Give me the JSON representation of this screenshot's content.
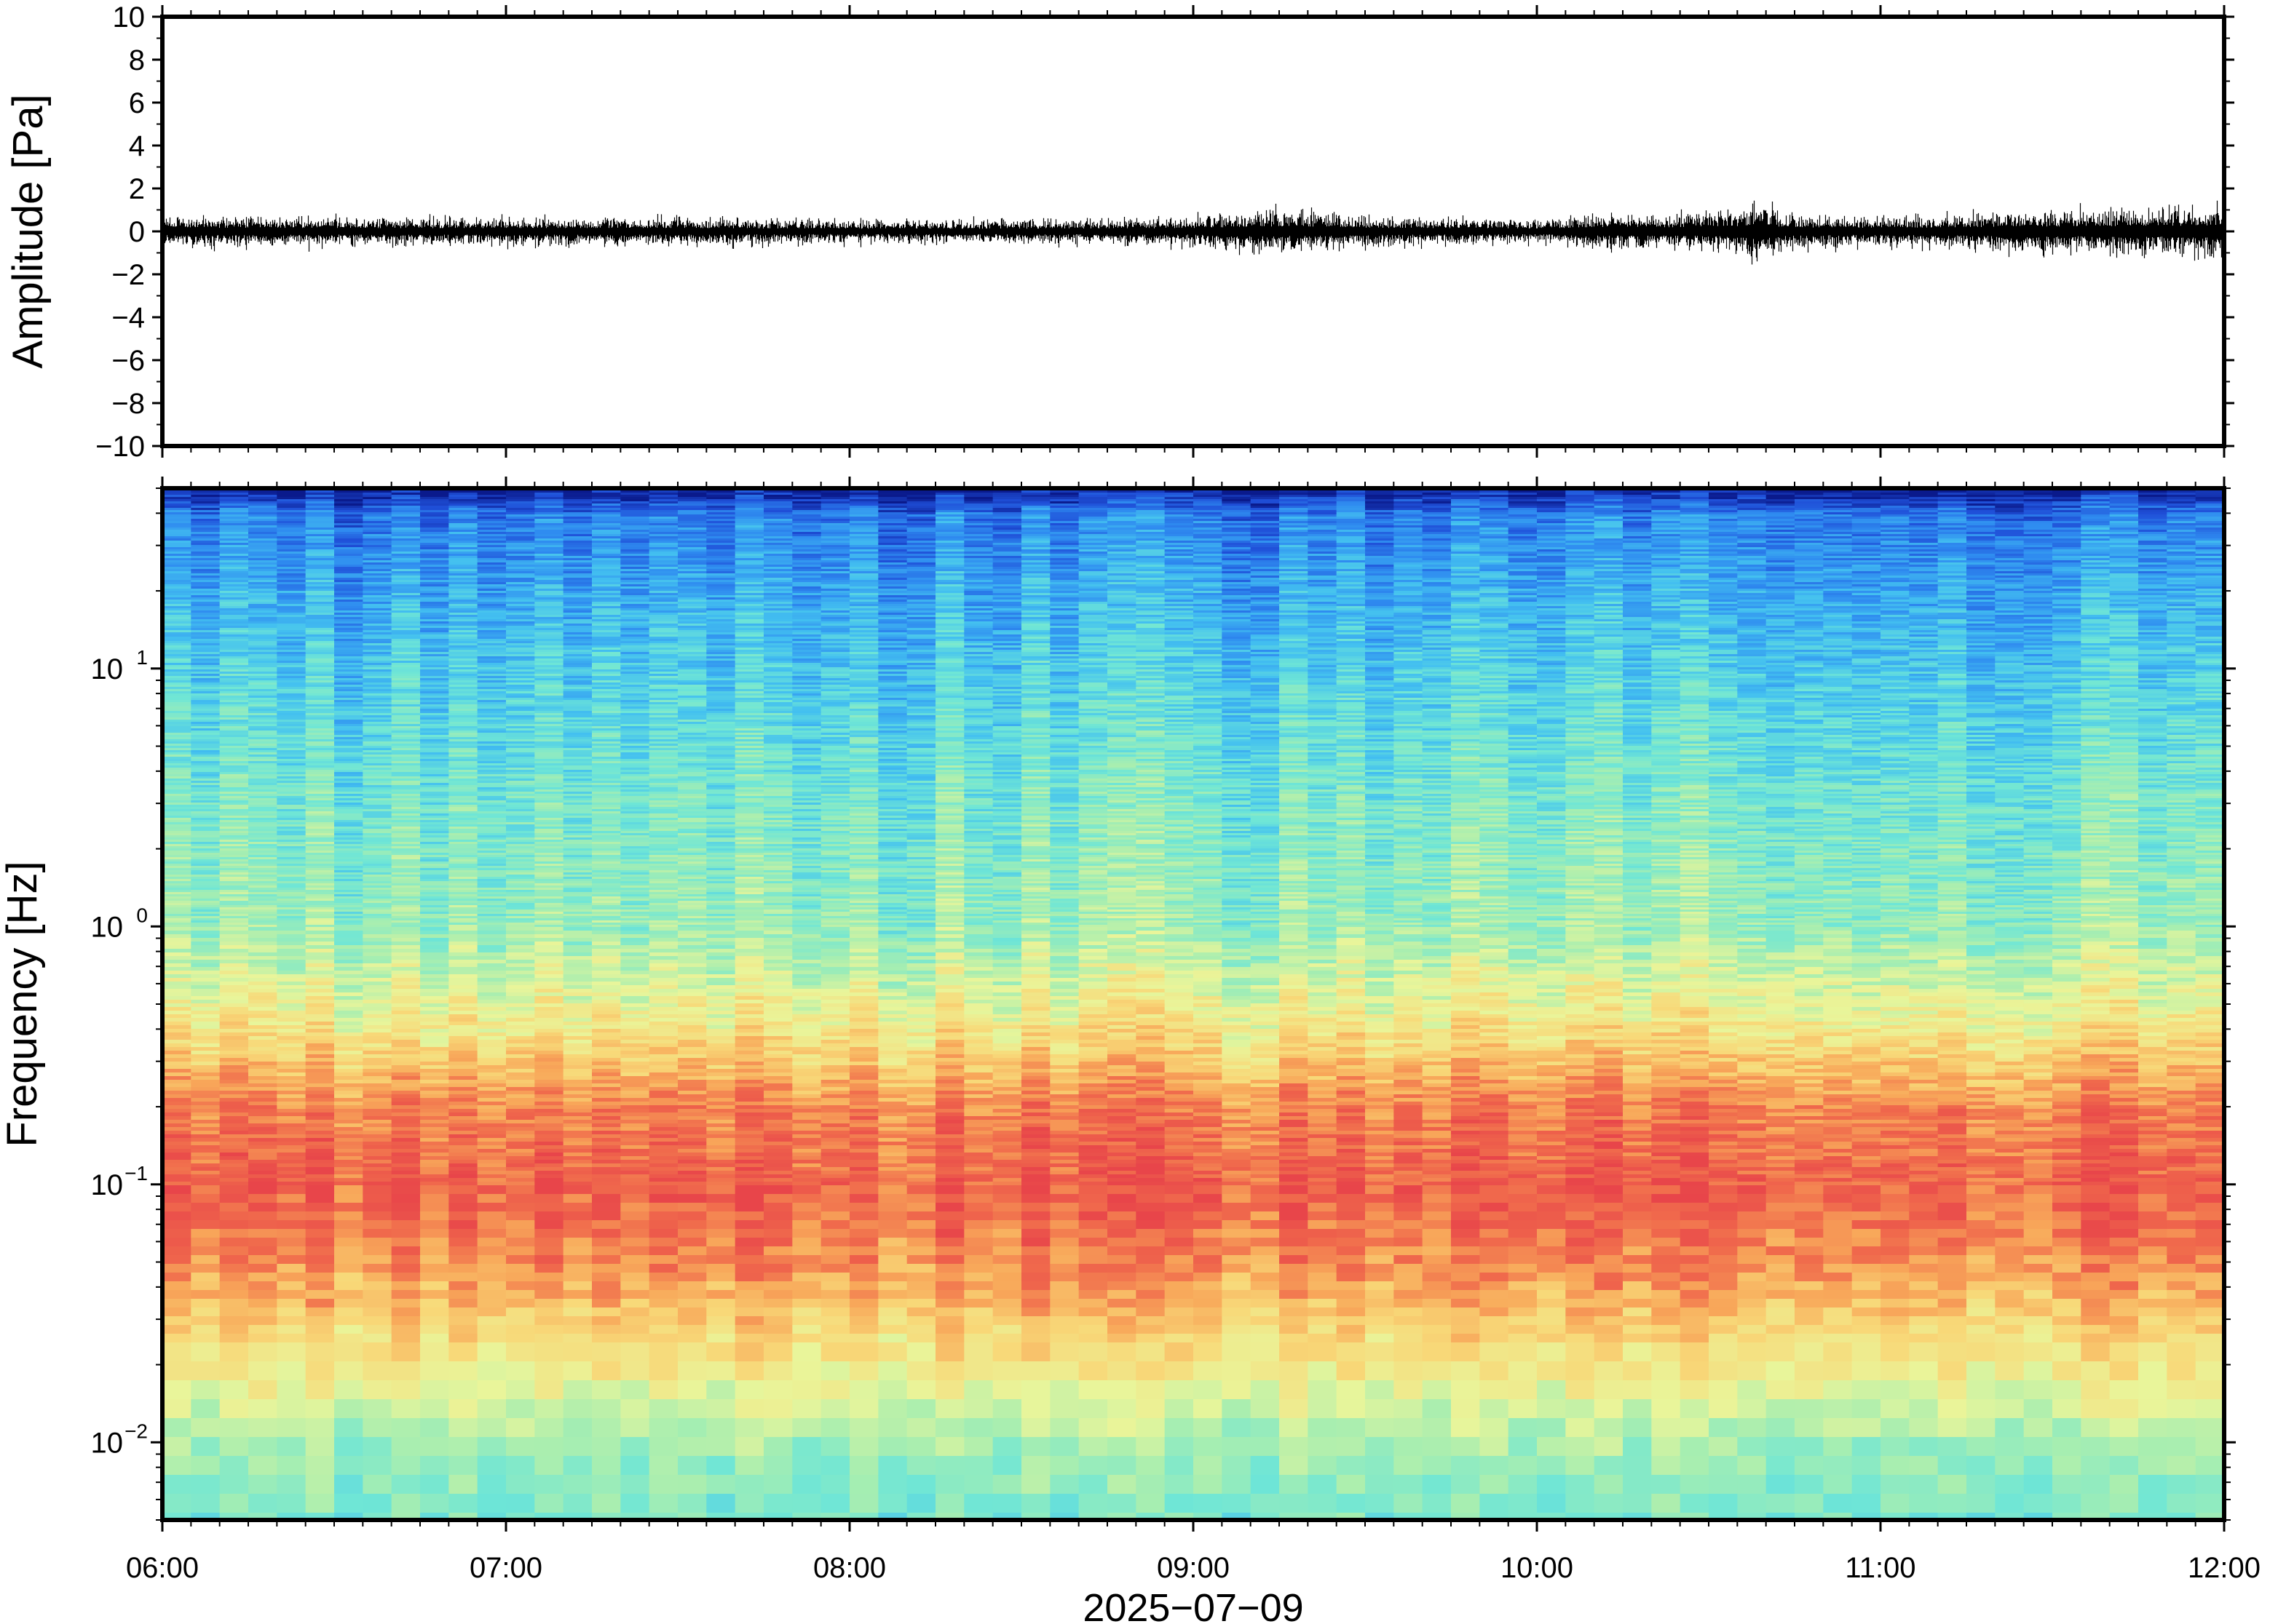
{
  "chart_data": [
    {
      "type": "line",
      "panel": "waveform",
      "ylabel": "Amplitude [Pa]",
      "ylim": [
        -10,
        10
      ],
      "yticks": [
        10,
        8,
        6,
        4,
        2,
        0,
        -2,
        -4,
        -6,
        -8,
        -10
      ],
      "ytick_labels": [
        "10",
        "8",
        "6",
        "4",
        "2",
        "0",
        "−2",
        "−4",
        "−6",
        "−8",
        "−10"
      ],
      "xlim": [
        "06:00",
        "12:00"
      ],
      "series": [
        {
          "color": "#000000",
          "envelope_hours": [
            6.0,
            6.5,
            7.0,
            7.5,
            8.0,
            8.5,
            9.0,
            9.2,
            9.4,
            9.6,
            9.8,
            10.0,
            10.2,
            10.4,
            10.6,
            10.65,
            10.7,
            11.0,
            11.5,
            11.9,
            12.0
          ],
          "envelope_amplitude_pa": [
            0.7,
            0.6,
            0.6,
            0.6,
            0.5,
            0.5,
            0.6,
            0.9,
            0.8,
            0.6,
            0.6,
            0.5,
            0.8,
            0.7,
            1.0,
            1.5,
            0.8,
            0.6,
            0.9,
            1.0,
            1.2
          ]
        }
      ]
    },
    {
      "type": "heatmap",
      "panel": "spectrogram",
      "ylabel": "Frequency [Hz]",
      "xlabel": "2025−07−09",
      "y_scale": "log",
      "ylim": [
        0.005,
        50
      ],
      "yticks": [
        0.01,
        0.1,
        1,
        10
      ],
      "ytick_labels": [
        {
          "base": "10",
          "exp": "−2"
        },
        {
          "base": "10",
          "exp": "−1"
        },
        {
          "base": "10",
          "exp": "0"
        },
        {
          "base": "10",
          "exp": "1"
        }
      ],
      "xlim": [
        "06:00",
        "12:00"
      ],
      "xticks": [
        "06:00",
        "07:00",
        "08:00",
        "09:00",
        "10:00",
        "11:00",
        "12:00"
      ],
      "colormap": [
        "#0a1a8c",
        "#1f4fd8",
        "#2f8cf0",
        "#43c0f0",
        "#6fe6d6",
        "#a8eeb0",
        "#e9f59a",
        "#f8d878",
        "#f8a85a",
        "#f06a4c",
        "#e8454a"
      ],
      "intensity_profile": {
        "log10_freq": [
          1.7,
          1.6,
          1.3,
          1.0,
          0.5,
          0.0,
          -0.4,
          -0.7,
          -1.0,
          -1.3,
          -1.6,
          -1.8,
          -2.0,
          -2.3
        ],
        "level": [
          0.0,
          0.18,
          0.26,
          0.33,
          0.42,
          0.48,
          0.66,
          0.86,
          0.93,
          0.84,
          0.68,
          0.58,
          0.48,
          0.42
        ]
      }
    }
  ]
}
